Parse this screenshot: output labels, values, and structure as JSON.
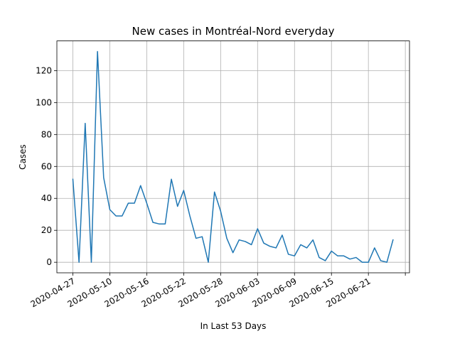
{
  "chart_data": {
    "type": "line",
    "title": "New cases in Montréal-Nord everyday",
    "xlabel": "In Last 53 Days",
    "ylabel": "Cases",
    "grid": true,
    "x_tick_labels": [
      "2020-04-27",
      "2020-05-10",
      "2020-05-16",
      "2020-05-22",
      "2020-05-28",
      "2020-06-03",
      "2020-06-09",
      "2020-06-15",
      "2020-06-21",
      ""
    ],
    "y_ticks": [
      0,
      20,
      40,
      60,
      80,
      100,
      120
    ],
    "ylim": [
      -6.6,
      138.6
    ],
    "series": [
      {
        "color": "#1f77b4",
        "values": [
          52,
          0,
          87,
          0,
          132,
          53,
          33,
          29,
          29,
          37,
          37,
          48,
          37,
          25,
          24,
          24,
          52,
          35,
          45,
          29,
          15,
          16,
          0,
          44,
          32,
          15,
          6,
          14,
          13,
          11,
          21,
          12,
          10,
          9,
          17,
          5,
          4,
          11,
          9,
          14,
          3,
          1,
          7,
          4,
          4,
          2,
          3,
          0,
          0,
          9,
          1,
          0,
          14
        ]
      }
    ]
  }
}
